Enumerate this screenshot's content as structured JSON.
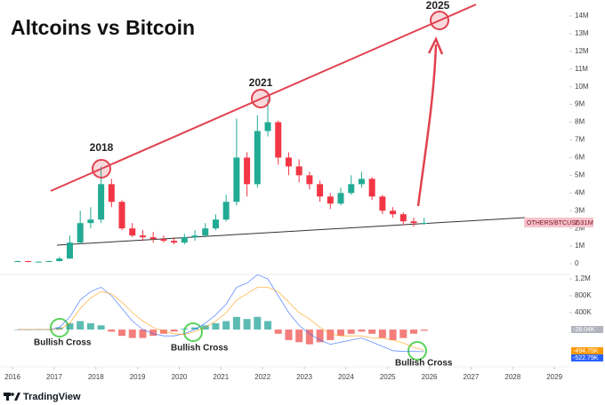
{
  "chart_data": [
    {
      "type": "candlestick",
      "title": "Altcoins vs Bitcoin",
      "x": [
        2016.125,
        2016.375,
        2016.625,
        2016.875,
        2017.125,
        2017.375,
        2017.625,
        2017.875,
        2018.125,
        2018.375,
        2018.625,
        2018.875,
        2019.125,
        2019.375,
        2019.625,
        2019.875,
        2020.125,
        2020.375,
        2020.625,
        2020.875,
        2021.125,
        2021.375,
        2021.625,
        2021.875,
        2022.125,
        2022.375,
        2022.625,
        2022.875,
        2023.125,
        2023.375,
        2023.625,
        2023.875,
        2024.125,
        2024.375,
        2024.625,
        2024.875,
        2025.125,
        2025.375,
        2025.625,
        2025.875
      ],
      "open": [
        0.12,
        0.15,
        0.1,
        0.12,
        0.15,
        0.3,
        1.2,
        2.3,
        2.5,
        4.5,
        3.5,
        2.0,
        1.6,
        1.5,
        1.4,
        1.3,
        1.2,
        1.5,
        1.6,
        2.0,
        2.5,
        3.5,
        6.0,
        4.5,
        7.5,
        8.0,
        6.0,
        5.5,
        5.0,
        4.5,
        3.8,
        3.4,
        4.0,
        4.5,
        4.8,
        3.8,
        3.0,
        2.8,
        2.4,
        2.3
      ],
      "high": [
        0.18,
        0.17,
        0.14,
        0.17,
        0.4,
        1.6,
        3.0,
        3.2,
        5.5,
        4.8,
        3.6,
        2.3,
        1.9,
        1.8,
        1.6,
        1.5,
        1.7,
        1.9,
        2.3,
        2.8,
        3.9,
        8.2,
        6.3,
        8.4,
        9.3,
        8.1,
        6.3,
        5.9,
        5.2,
        4.7,
        4.0,
        4.3,
        5.0,
        5.2,
        4.9,
        3.9,
        3.2,
        2.9,
        2.6,
        2.6
      ],
      "low": [
        0.1,
        0.08,
        0.09,
        0.11,
        0.14,
        0.28,
        1.1,
        2.0,
        2.3,
        3.2,
        1.9,
        1.5,
        1.3,
        1.2,
        1.2,
        1.1,
        1.1,
        1.3,
        1.5,
        1.9,
        2.4,
        3.3,
        3.8,
        4.3,
        7.2,
        5.6,
        5.0,
        4.6,
        4.2,
        3.5,
        3.1,
        3.3,
        3.9,
        4.3,
        3.6,
        2.8,
        2.6,
        2.2,
        2.1,
        2.2
      ],
      "close": [
        0.15,
        0.1,
        0.12,
        0.15,
        0.3,
        1.2,
        2.3,
        2.5,
        4.5,
        3.5,
        2.0,
        1.6,
        1.5,
        1.4,
        1.3,
        1.2,
        1.5,
        1.6,
        2.0,
        2.5,
        3.5,
        6.0,
        4.5,
        7.5,
        8.0,
        6.0,
        5.5,
        5.0,
        4.5,
        3.8,
        3.4,
        4.0,
        4.5,
        4.8,
        3.8,
        3.0,
        2.8,
        2.4,
        2.3,
        2.31
      ],
      "up_color": "#22ab94",
      "down_color": "#f23645",
      "xlim": [
        2015.7,
        2029.36
      ],
      "xticks": [
        2016,
        2017,
        2018,
        2019,
        2020,
        2021,
        2022,
        2023,
        2024,
        2025,
        2026,
        2027,
        2028,
        2029
      ],
      "ylim": [
        -0.4,
        14.4
      ],
      "yticks": [
        0,
        {
          "value": 1,
          "label": "1M"
        },
        {
          "value": 2,
          "label": "2M"
        },
        {
          "value": 3,
          "label": "3M"
        },
        {
          "value": 4,
          "label": "4M"
        },
        {
          "value": 5,
          "label": "5M"
        },
        {
          "value": 6,
          "label": "6M"
        },
        {
          "value": 7,
          "label": "7M"
        },
        {
          "value": 8,
          "label": "8M"
        },
        {
          "value": 9,
          "label": "9M"
        },
        {
          "value": 10,
          "label": "10M"
        },
        {
          "value": 11,
          "label": "11M"
        },
        {
          "value": 12,
          "label": "12M"
        },
        {
          "value": 13,
          "label": "13M"
        },
        {
          "value": 14,
          "label": "14M"
        }
      ],
      "price_tag": {
        "name": "OTHERS/BTCUSD",
        "label": "2.31M"
      },
      "annotations": [
        "2018",
        "2021",
        "2025"
      ]
    },
    {
      "type": "macd",
      "histogram": [
        0.0,
        0.0,
        0.0,
        0.0,
        0.05,
        0.15,
        0.2,
        0.15,
        0.1,
        -0.05,
        -0.15,
        -0.2,
        -0.2,
        -0.15,
        -0.1,
        -0.05,
        0.02,
        0.05,
        0.1,
        0.15,
        0.2,
        0.3,
        0.25,
        0.3,
        0.2,
        -0.1,
        -0.25,
        -0.3,
        -0.35,
        -0.3,
        -0.25,
        -0.15,
        -0.1,
        -0.05,
        -0.1,
        -0.2,
        -0.25,
        -0.2,
        -0.1,
        -0.02804
      ],
      "macd": [
        0,
        0,
        0,
        0,
        0.05,
        0.3,
        0.7,
        0.9,
        1.0,
        0.8,
        0.5,
        0.2,
        0.0,
        -0.1,
        -0.15,
        -0.15,
        -0.1,
        0,
        0.15,
        0.35,
        0.6,
        1.0,
        1.1,
        1.3,
        1.2,
        0.8,
        0.4,
        0.1,
        -0.1,
        -0.25,
        -0.35,
        -0.3,
        -0.25,
        -0.2,
        -0.3,
        -0.4,
        -0.5,
        -0.52,
        -0.52,
        -0.52279
      ],
      "signal": [
        0,
        0,
        0,
        0,
        0.0,
        0.15,
        0.5,
        0.75,
        0.9,
        0.85,
        0.65,
        0.4,
        0.2,
        0.05,
        -0.05,
        -0.1,
        -0.12,
        -0.05,
        0.05,
        0.2,
        0.4,
        0.7,
        0.85,
        1.0,
        1.0,
        0.9,
        0.65,
        0.4,
        0.25,
        0.05,
        -0.1,
        -0.15,
        -0.15,
        -0.15,
        -0.2,
        -0.2,
        -0.25,
        -0.32,
        -0.42,
        -0.49475
      ],
      "histogram_up_color": "#26a69a",
      "histogram_down_color": "#ef5350",
      "macd_color": "#2962ff",
      "signal_color": "#ff9800",
      "last_labels": {
        "histogram": "-28.04K",
        "signal": "-494.75K",
        "macd": "-522.79K"
      },
      "ylim": [
        -0.82,
        1.39
      ],
      "yticks": [
        {
          "value": 1.2,
          "label": "1.2M"
        },
        {
          "value": 0.8,
          "label": "800K"
        },
        {
          "value": 0.4,
          "label": "400K"
        }
      ],
      "annotations": [
        "Bullish Cross",
        "Bullish Cross",
        "Bullish Cross"
      ]
    }
  ],
  "footer": "TradingView"
}
